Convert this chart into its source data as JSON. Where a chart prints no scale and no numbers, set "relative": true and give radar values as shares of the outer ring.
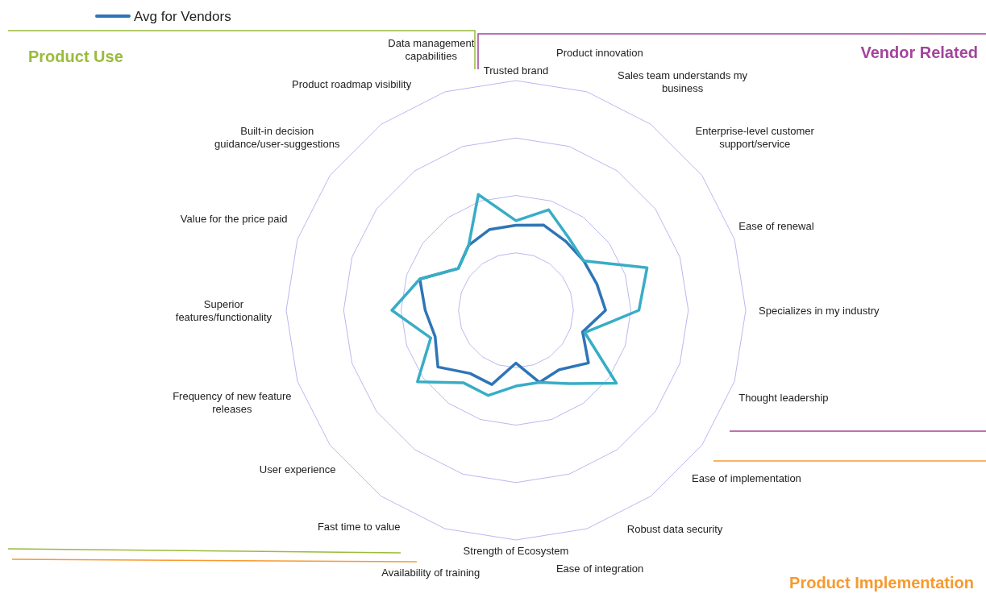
{
  "chart_data": {
    "type": "radar",
    "relative": true,
    "grid": true,
    "legend": "top left",
    "marker": "none",
    "line_style": "solid",
    "categories": [
      "Trusted brand",
      "Product innovation",
      "Sales team understands my business",
      "Enterprise-level customer support/service",
      "Ease of renewal",
      "Specializes in my industry",
      "Thought leadership",
      "Ease of implementation",
      "Robust data security",
      "Ease of integration",
      "Strength of Ecosystem",
      "Availability of training",
      "Fast time to value",
      "User experience",
      "Frequency of new feature releases",
      "Superior features/functionality",
      "Value for the price paid",
      "Built-in decision guidance/user-suggestions",
      "Product roadmap visibility",
      "Data management capabilities"
    ],
    "series": [
      {
        "name": "Avg for Vendors",
        "color": "#2e75b6",
        "values": [
          0.37,
          0.39,
          0.37,
          0.365,
          0.37,
          0.39,
          0.305,
          0.39,
          0.32,
          0.33,
          0.23,
          0.34,
          0.34,
          0.42,
          0.37,
          0.395,
          0.44,
          0.31,
          0.35,
          0.37
        ]
      },
      {
        "color": "#38adc6",
        "values": [
          0.39,
          0.46,
          0.39,
          0.365,
          0.6,
          0.535,
          0.315,
          0.54,
          0.395,
          0.33,
          0.33,
          0.39,
          0.39,
          0.53,
          0.39,
          0.54,
          0.44,
          0.31,
          0.35,
          0.53
        ]
      }
    ],
    "annotations": [
      "Product Use",
      "Vendor Related",
      "Product Implementation"
    ]
  }
}
